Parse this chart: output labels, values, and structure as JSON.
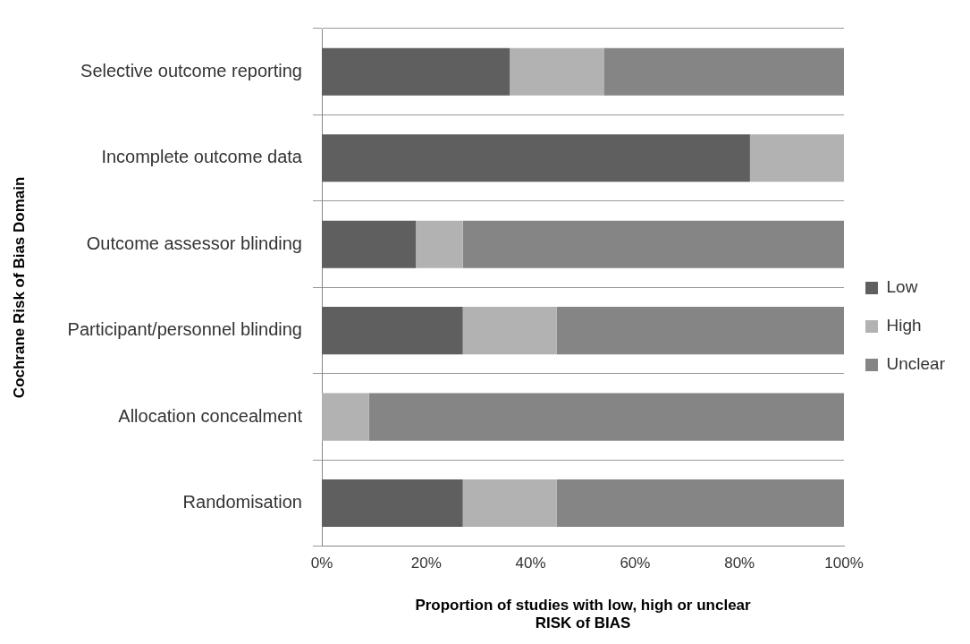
{
  "chart_data": {
    "type": "bar",
    "orientation": "horizontal",
    "stacked": true,
    "ylabel": "Cochrane Risk of Bias Domain",
    "xlabel": "Proportion of studies with low, high or unclear RISK of BIAS",
    "categories": [
      "Selective outcome reporting",
      "Incomplete outcome data",
      "Outcome assessor blinding",
      "Participant/personnel blinding",
      "Allocation concealment",
      "Randomisation"
    ],
    "series": [
      {
        "name": "Low",
        "color": "#5f5f5f",
        "values": [
          36,
          82,
          18,
          27,
          0,
          27
        ]
      },
      {
        "name": "High",
        "color": "#b2b2b2",
        "values": [
          18,
          18,
          9,
          18,
          9,
          18
        ]
      },
      {
        "name": "Unclear",
        "color": "#858585",
        "values": [
          46,
          0,
          73,
          55,
          91,
          55
        ]
      }
    ],
    "xlim": [
      0,
      100
    ],
    "xticks": [
      {
        "value": 0,
        "label": "0%"
      },
      {
        "value": 20,
        "label": "20%"
      },
      {
        "value": 40,
        "label": "40%"
      },
      {
        "value": 60,
        "label": "60%"
      },
      {
        "value": 80,
        "label": "80%"
      },
      {
        "value": 100,
        "label": "100%"
      }
    ],
    "grid": "y",
    "legend": "right"
  }
}
